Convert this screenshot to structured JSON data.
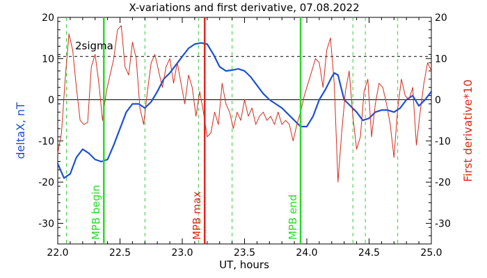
{
  "chart_data": {
    "type": "line",
    "title": "X-variations and first derivative, 07.08.2022",
    "xlabel": "UT, hours",
    "ylabel_left": "deltaX, nT",
    "ylabel_right": "First derivative*10",
    "xlim": [
      22.0,
      25.0
    ],
    "ylim": [
      -35,
      20
    ],
    "x_ticks": [
      22.0,
      22.5,
      23.0,
      23.5,
      24.0,
      24.5,
      25.0
    ],
    "x_tick_labels": [
      "22.0",
      "22.5",
      "23.0",
      "23.5",
      "24.0",
      "24.5",
      "25.0"
    ],
    "y_ticks": [
      20,
      10,
      0,
      -10,
      -20,
      -30
    ],
    "y_tick_labels": [
      "20",
      "10",
      "0",
      "-10",
      "-20",
      "-30"
    ],
    "threshold": {
      "value": 10.5,
      "label": "2sigma"
    },
    "zero_line": 0,
    "colors": {
      "deltaX": "#1a4fd6",
      "derivative": "#d42a1a",
      "mpb_begin": "#22dd22",
      "mpb_max": "#e8231a",
      "mpb_end": "#22dd22",
      "dashed": "#33cc33",
      "threshold": "#000000"
    },
    "markers": [
      {
        "x": 22.37,
        "label": "MPB begin",
        "color": "#22dd22"
      },
      {
        "x": 23.18,
        "label": "MPB max",
        "color": "#e8231a"
      },
      {
        "x": 23.95,
        "label": "MPB end",
        "color": "#22dd22"
      }
    ],
    "dashed_lines": [
      22.07,
      22.7,
      23.13,
      23.4,
      24.37,
      24.47,
      24.73
    ],
    "series": [
      {
        "name": "deltaX",
        "axis": "left",
        "x": [
          22.0,
          22.05,
          22.1,
          22.15,
          22.2,
          22.25,
          22.3,
          22.35,
          22.4,
          22.45,
          22.5,
          22.55,
          22.6,
          22.65,
          22.7,
          22.75,
          22.8,
          22.85,
          22.9,
          22.95,
          23.0,
          23.05,
          23.1,
          23.15,
          23.2,
          23.25,
          23.3,
          23.35,
          23.4,
          23.45,
          23.5,
          23.55,
          23.6,
          23.65,
          23.7,
          23.75,
          23.8,
          23.85,
          23.9,
          23.95,
          24.0,
          24.05,
          24.1,
          24.15,
          24.2,
          24.22,
          24.25,
          24.3,
          24.35,
          24.4,
          24.45,
          24.5,
          24.55,
          24.6,
          24.65,
          24.7,
          24.75,
          24.8,
          24.85,
          24.9,
          24.95,
          25.0
        ],
        "y": [
          -15.5,
          -19,
          -18,
          -14,
          -12,
          -13,
          -14.5,
          -15,
          -14.5,
          -11,
          -7,
          -3,
          -1,
          -1,
          -2,
          -0.5,
          2,
          5,
          6.5,
          8.5,
          10.5,
          12.5,
          13.5,
          13.8,
          13.5,
          11,
          8,
          7,
          7.2,
          7.5,
          7,
          5.5,
          3.5,
          1.5,
          0,
          -1,
          -2,
          -3.5,
          -5,
          -6.5,
          -6.5,
          -4,
          0,
          2.5,
          5.5,
          6.5,
          6,
          0,
          -1.5,
          -3,
          -5,
          -4.5,
          -3,
          -2.5,
          -2.5,
          -3,
          -2,
          0,
          1,
          -1.5,
          0,
          2
        ]
      },
      {
        "name": "First derivative*10",
        "axis": "right",
        "x": [
          22.0,
          22.03,
          22.06,
          22.09,
          22.12,
          22.15,
          22.18,
          22.21,
          22.24,
          22.27,
          22.3,
          22.33,
          22.36,
          22.39,
          22.42,
          22.45,
          22.48,
          22.51,
          22.54,
          22.57,
          22.6,
          22.63,
          22.66,
          22.69,
          22.72,
          22.75,
          22.78,
          22.81,
          22.84,
          22.87,
          22.9,
          22.93,
          22.96,
          22.99,
          23.02,
          23.05,
          23.08,
          23.11,
          23.14,
          23.17,
          23.2,
          23.23,
          23.26,
          23.29,
          23.32,
          23.35,
          23.38,
          23.41,
          23.44,
          23.47,
          23.5,
          23.53,
          23.56,
          23.59,
          23.62,
          23.65,
          23.68,
          23.71,
          23.74,
          23.77,
          23.8,
          23.83,
          23.86,
          23.89,
          23.92,
          23.95,
          23.98,
          24.01,
          24.04,
          24.07,
          24.1,
          24.13,
          24.16,
          24.19,
          24.22,
          24.25,
          24.28,
          24.31,
          24.34,
          24.37,
          24.4,
          24.43,
          24.46,
          24.49,
          24.52,
          24.55,
          24.58,
          24.61,
          24.64,
          24.67,
          24.7,
          24.73,
          24.76,
          24.79,
          24.82,
          24.85,
          24.88,
          24.91,
          24.94,
          24.97,
          25.0
        ],
        "y": [
          -13,
          -8,
          5,
          16,
          12,
          3,
          -5,
          -6,
          -5.5,
          8,
          11,
          4,
          -5,
          2,
          6,
          10,
          17,
          18,
          8,
          6,
          14,
          10,
          -2,
          -6,
          2,
          9,
          11,
          7,
          3,
          8,
          10,
          4,
          9,
          4,
          -1,
          6,
          3,
          -4,
          2,
          -3,
          -9,
          -8,
          -3,
          -6,
          4,
          -1,
          -3,
          -7,
          -3,
          -5,
          0,
          -4,
          -2,
          -6,
          -4,
          -3,
          -5,
          -4,
          -6,
          -3,
          -6,
          -5,
          -6,
          -10,
          -6,
          -3,
          1,
          4,
          7,
          10,
          9,
          3,
          12,
          15,
          4,
          -20,
          -8,
          2,
          7,
          -4,
          -12,
          -9,
          2,
          5,
          -9,
          -1,
          4,
          3,
          -1,
          -6,
          -14,
          -2,
          5,
          1,
          0,
          3,
          -11,
          -3,
          4,
          9,
          7
        ]
      }
    ]
  }
}
